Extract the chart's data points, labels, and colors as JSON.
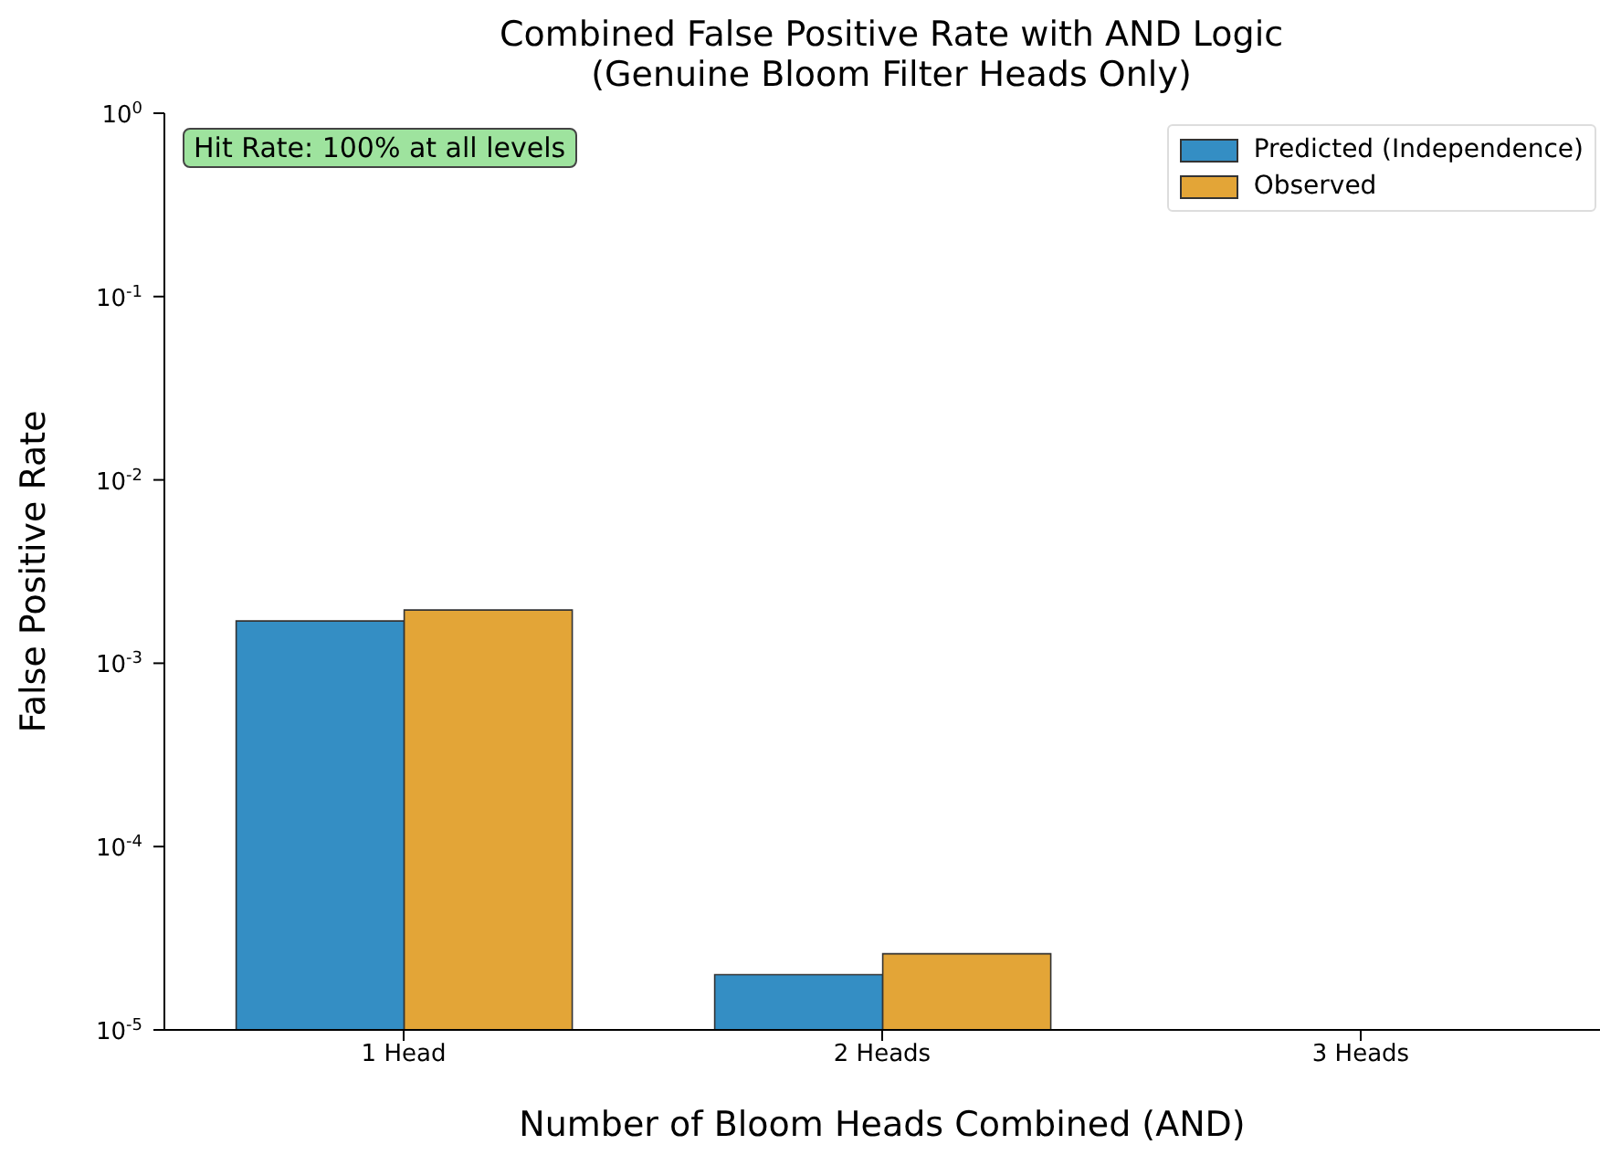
{
  "chart_data": {
    "type": "bar",
    "title": "Combined False Positive Rate with AND Logic\n(Genuine Bloom Filter Heads Only)",
    "xlabel": "Number of Bloom Heads Combined (AND)",
    "ylabel": "False Positive Rate",
    "categories": [
      "1 Head",
      "2 Heads",
      "3 Heads"
    ],
    "series": [
      {
        "name": "Predicted (Independence)",
        "color": "#348ec4",
        "values": [
          0.0017,
          2e-05,
          null
        ]
      },
      {
        "name": "Observed",
        "color": "#e3a537",
        "values": [
          0.00195,
          2.6e-05,
          null
        ]
      }
    ],
    "log": true,
    "ylim": [
      1e-05,
      1
    ],
    "yticks": [
      {
        "value": 1e-05,
        "label": "10$^{-5}$"
      },
      {
        "value": 0.0001,
        "label": "10$^{-4}$"
      },
      {
        "value": 0.001,
        "label": "10$^{-3}$"
      },
      {
        "value": 0.01,
        "label": "10$^{-2}$"
      },
      {
        "value": 0.1,
        "label": "10$^{-1}$"
      },
      {
        "value": 1,
        "label": "10$^{0}$"
      }
    ],
    "legend": "top right",
    "grid": false,
    "annotations": [
      "Hit Rate: 100% at all levels"
    ]
  }
}
